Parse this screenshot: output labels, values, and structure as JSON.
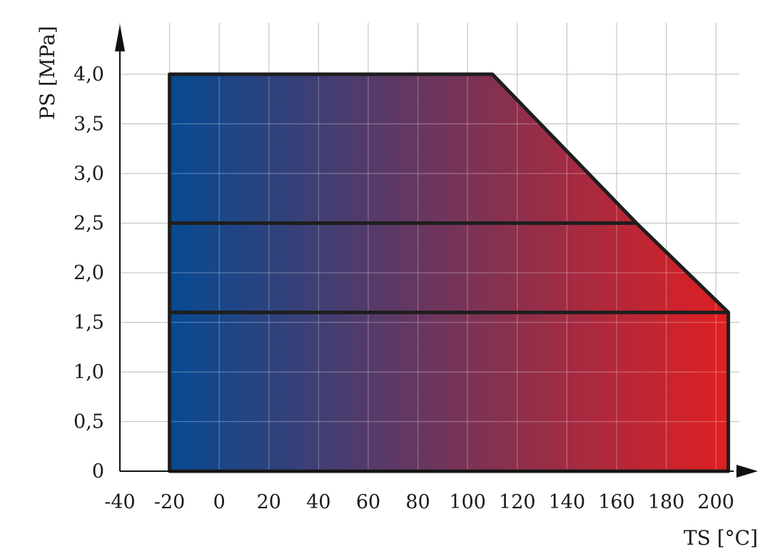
{
  "chart_data": {
    "type": "area",
    "xlabel": "TS [°C]",
    "ylabel": "PS [MPa]",
    "xlim": [
      -40,
      210
    ],
    "ylim": [
      0,
      4.2
    ],
    "x_ticks": [
      -40,
      -20,
      0,
      20,
      40,
      60,
      80,
      100,
      120,
      140,
      160,
      180,
      200
    ],
    "x_tick_labels": [
      "-40",
      "-20",
      "0",
      "20",
      "40",
      "60",
      "80",
      "100",
      "120",
      "140",
      "160",
      "180",
      "200"
    ],
    "y_ticks": [
      0,
      0.5,
      1.0,
      1.5,
      2.0,
      2.5,
      3.0,
      3.5,
      4.0
    ],
    "y_tick_labels": [
      "0",
      "0,5",
      "1,0",
      "1,5",
      "2,0",
      "2,5",
      "3,0",
      "3,5",
      "4,0"
    ],
    "x_grid_step": 20,
    "y_grid_step": 0.5,
    "grid": true,
    "region": {
      "outline": [
        {
          "x": -20,
          "y": 0
        },
        {
          "x": -20,
          "y": 4.0
        },
        {
          "x": 110,
          "y": 4.0
        },
        {
          "x": 168,
          "y": 2.5
        },
        {
          "x": 205,
          "y": 1.6
        },
        {
          "x": 205,
          "y": 0
        }
      ],
      "fill_gradient": [
        "#064a92",
        "#e01f22"
      ]
    },
    "levels": [
      {
        "y": 2.5,
        "x_start": -20,
        "x_end": 168
      },
      {
        "y": 1.6,
        "x_start": -20,
        "x_end": 205
      }
    ]
  }
}
